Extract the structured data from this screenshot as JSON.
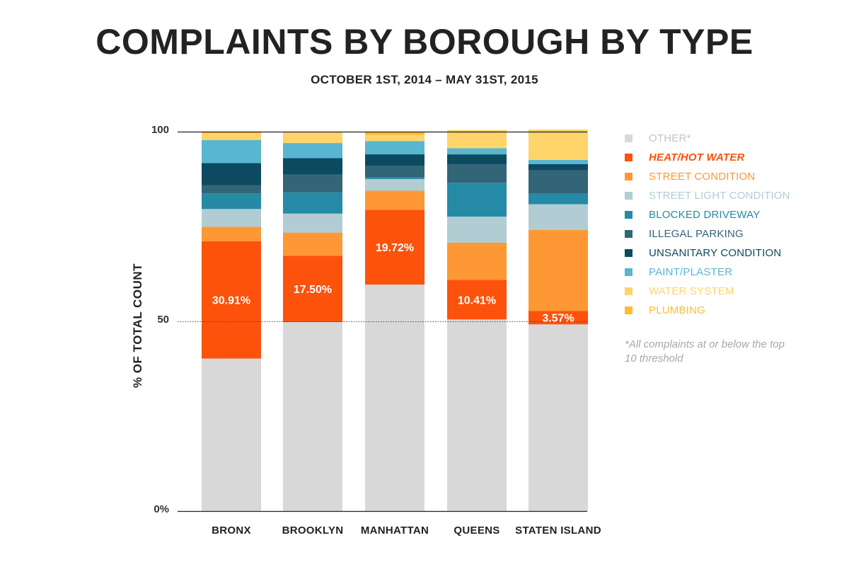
{
  "header": {
    "title": "COMPLAINTS BY BOROUGH BY TYPE",
    "subtitle": "OCTOBER 1ST, 2014 – MAY 31ST, 2015"
  },
  "footnote": "*All complaints at or below the top 10 threshold",
  "chart_data": {
    "type": "bar",
    "stacked": true,
    "title": "COMPLAINTS BY BOROUGH BY TYPE",
    "subtitle": "OCTOBER 1ST, 2014 – MAY 31ST, 2015",
    "xlabel": "",
    "ylabel": "% OF TOTAL COUNT",
    "ylim": [
      0,
      100
    ],
    "yticks": [
      {
        "value": 0,
        "label": "0%"
      },
      {
        "value": 50,
        "label": "50"
      },
      {
        "value": 100,
        "label": "100"
      }
    ],
    "categories": [
      "BRONX",
      "BROOKLYN",
      "MANHATTAN",
      "QUEENS",
      "STATEN ISLAND"
    ],
    "legend_position": "right",
    "series": [
      {
        "name": "OTHER*",
        "color": "#d8d8d8",
        "label_color": "#c4c4c4",
        "values": [
          40.2,
          49.8,
          59.7,
          50.5,
          49.2
        ]
      },
      {
        "name": "HEAT/HOT WATER",
        "color": "#fc520b",
        "label_color": "#fc520b",
        "emphasis": true,
        "values": [
          30.91,
          17.5,
          19.72,
          10.41,
          3.57
        ],
        "data_labels": [
          "30.91%",
          "17.50%",
          "19.72%",
          "10.41%",
          "3.57%"
        ]
      },
      {
        "name": "STREET CONDITION",
        "color": "#fd9834",
        "label_color": "#fd9834",
        "values": [
          3.8,
          6.1,
          5.0,
          9.8,
          21.3
        ]
      },
      {
        "name": "STREET LIGHT CONDITION",
        "color": "#b1cdd3",
        "label_color": "#b1cdd3",
        "values": [
          4.7,
          5.0,
          3.1,
          6.9,
          6.8
        ]
      },
      {
        "name": "BLOCKED DRIVEWAY",
        "color": "#258aa6",
        "label_color": "#258aa6",
        "values": [
          4.1,
          5.6,
          0.4,
          8.9,
          2.9
        ]
      },
      {
        "name": "ILLEGAL PARKING",
        "color": "#326576",
        "label_color": "#326576",
        "values": [
          2.2,
          4.7,
          3.0,
          5.0,
          6.0
        ]
      },
      {
        "name": "UNSANITARY CONDITION",
        "color": "#0c4a61",
        "label_color": "#0c4a61",
        "values": [
          5.8,
          4.3,
          3.1,
          2.5,
          1.7
        ]
      },
      {
        "name": "PAINT/PLASTER",
        "color": "#58b6d1",
        "label_color": "#58b6d1",
        "values": [
          6.1,
          4.0,
          3.5,
          1.6,
          1.1
        ]
      },
      {
        "name": "WATER SYSTEM",
        "color": "#fed46b",
        "label_color": "#fed46b",
        "values": [
          1.8,
          2.8,
          1.6,
          4.7,
          8.0
        ]
      },
      {
        "name": "PLUMBING",
        "color": "#febd33",
        "label_color": "#febd33",
        "values": [
          0.4,
          0.2,
          0.9,
          0.1,
          0.0
        ]
      }
    ]
  }
}
